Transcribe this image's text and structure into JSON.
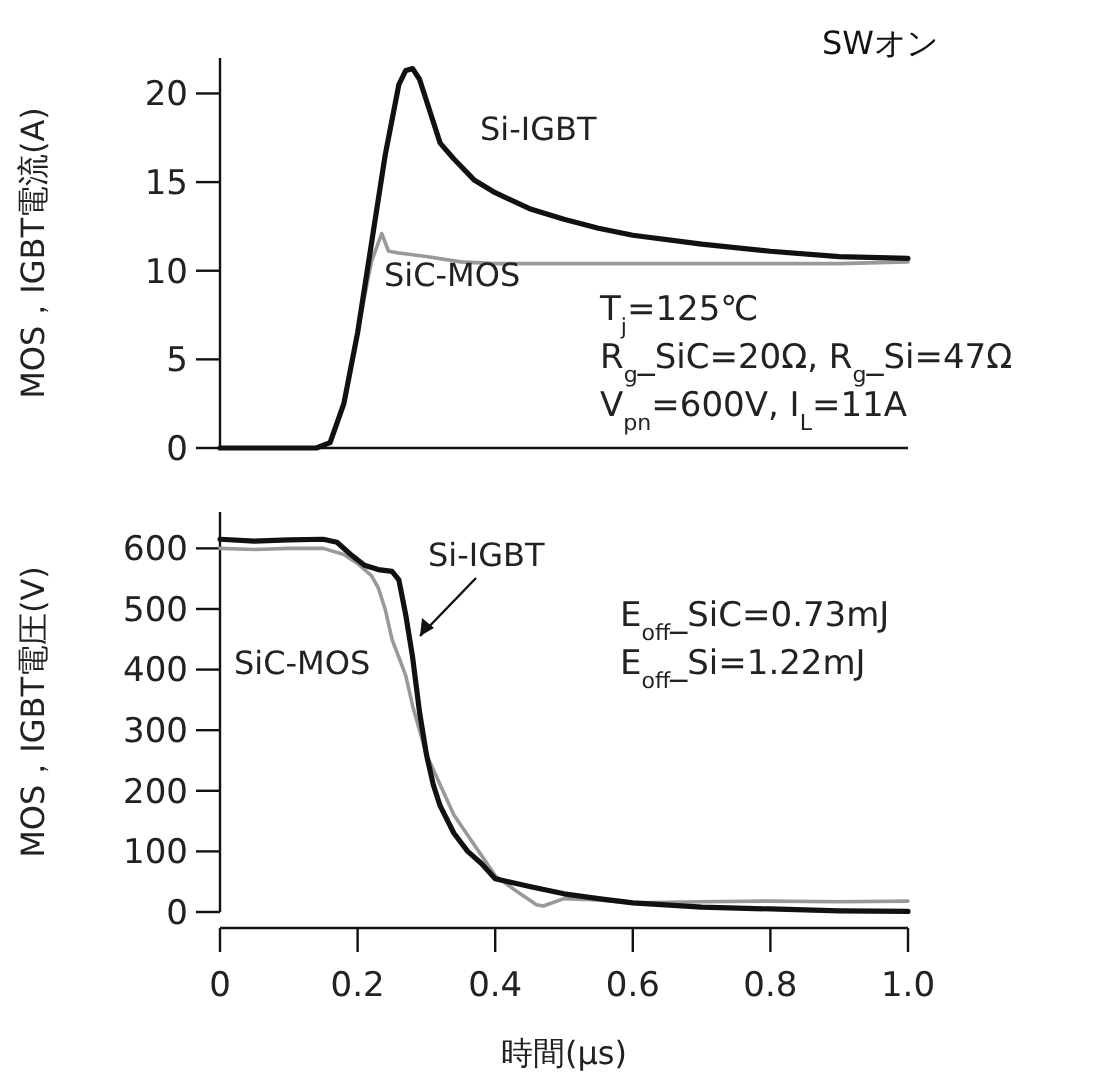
{
  "chart_data": [
    {
      "type": "line",
      "title": "SWオン",
      "ylabel": "MOS，IGBT電流(A)",
      "xlim": [
        0,
        1
      ],
      "ylim": [
        0,
        22
      ],
      "yticks": [
        0,
        5,
        10,
        15,
        20
      ],
      "tick_labels": "y",
      "grid": false,
      "marker": "none",
      "line_style": "solid",
      "annotations": [
        "T$_{j}$=125℃",
        "R$_{g}$_SiC=20Ω, R$_{g}$_Si=47Ω",
        "V$_{pn}$=600V, I$_{L}$=11A"
      ],
      "series": [
        {
          "name": "Si-IGBT",
          "color": "#111111",
          "x": [
            0,
            0.05,
            0.1,
            0.14,
            0.16,
            0.18,
            0.2,
            0.22,
            0.24,
            0.26,
            0.27,
            0.28,
            0.29,
            0.3,
            0.32,
            0.34,
            0.37,
            0.4,
            0.45,
            0.5,
            0.55,
            0.6,
            0.7,
            0.8,
            0.9,
            1.0
          ],
          "values": [
            0,
            0,
            0,
            0,
            0.3,
            2.5,
            6.5,
            11.5,
            16.5,
            20.5,
            21.3,
            21.4,
            20.8,
            19.6,
            17.2,
            16.3,
            15.1,
            14.4,
            13.5,
            12.9,
            12.4,
            12.0,
            11.5,
            11.1,
            10.8,
            10.7
          ]
        },
        {
          "name": "SiC-MOS",
          "color": "#999999",
          "x": [
            0,
            0.05,
            0.1,
            0.14,
            0.16,
            0.18,
            0.2,
            0.22,
            0.235,
            0.245,
            0.26,
            0.3,
            0.35,
            0.4,
            0.5,
            0.6,
            0.7,
            0.8,
            0.9,
            1.0
          ],
          "values": [
            0,
            0,
            0,
            0,
            0.3,
            2.5,
            6.5,
            10.5,
            12.1,
            11.1,
            11.0,
            10.8,
            10.5,
            10.4,
            10.4,
            10.4,
            10.4,
            10.4,
            10.4,
            10.5
          ]
        }
      ]
    },
    {
      "type": "line",
      "xlabel": "時間(μs)",
      "ylabel": "MOS，IGBT電圧(V)",
      "xlim": [
        0,
        1
      ],
      "ylim": [
        0,
        660
      ],
      "xticks": [
        0,
        0.2,
        0.4,
        0.6,
        0.8,
        {
          "value": 1,
          "label": "1.0"
        }
      ],
      "yticks": [
        0,
        100,
        200,
        300,
        400,
        500,
        600
      ],
      "grid": false,
      "marker": "none",
      "line_style": "solid",
      "annotations": [
        "E$_{off}$_SiC=0.73mJ",
        "E$_{off}$_Si=1.22mJ"
      ],
      "series": [
        {
          "name": "Si-IGBT",
          "color": "#111111",
          "x": [
            0,
            0.05,
            0.1,
            0.15,
            0.17,
            0.19,
            0.21,
            0.23,
            0.25,
            0.26,
            0.27,
            0.28,
            0.29,
            0.3,
            0.31,
            0.32,
            0.34,
            0.36,
            0.38,
            0.4,
            0.45,
            0.5,
            0.55,
            0.6,
            0.7,
            0.8,
            0.9,
            1.0
          ],
          "values": [
            615,
            612,
            614,
            615,
            610,
            590,
            572,
            565,
            562,
            548,
            490,
            420,
            330,
            260,
            210,
            175,
            130,
            100,
            80,
            55,
            42,
            30,
            22,
            15,
            8,
            5,
            2,
            1
          ]
        },
        {
          "name": "SiC-MOS",
          "color": "#999999",
          "x": [
            0,
            0.05,
            0.1,
            0.15,
            0.18,
            0.2,
            0.22,
            0.23,
            0.24,
            0.25,
            0.26,
            0.27,
            0.28,
            0.29,
            0.3,
            0.32,
            0.34,
            0.37,
            0.4,
            0.43,
            0.46,
            0.47,
            0.5,
            0.55,
            0.6,
            0.7,
            0.8,
            0.9,
            1.0
          ],
          "values": [
            600,
            598,
            600,
            600,
            590,
            575,
            555,
            535,
            500,
            450,
            420,
            390,
            340,
            300,
            260,
            210,
            160,
            110,
            60,
            35,
            12,
            10,
            22,
            20,
            15,
            17,
            18,
            17,
            18
          ]
        }
      ]
    }
  ]
}
